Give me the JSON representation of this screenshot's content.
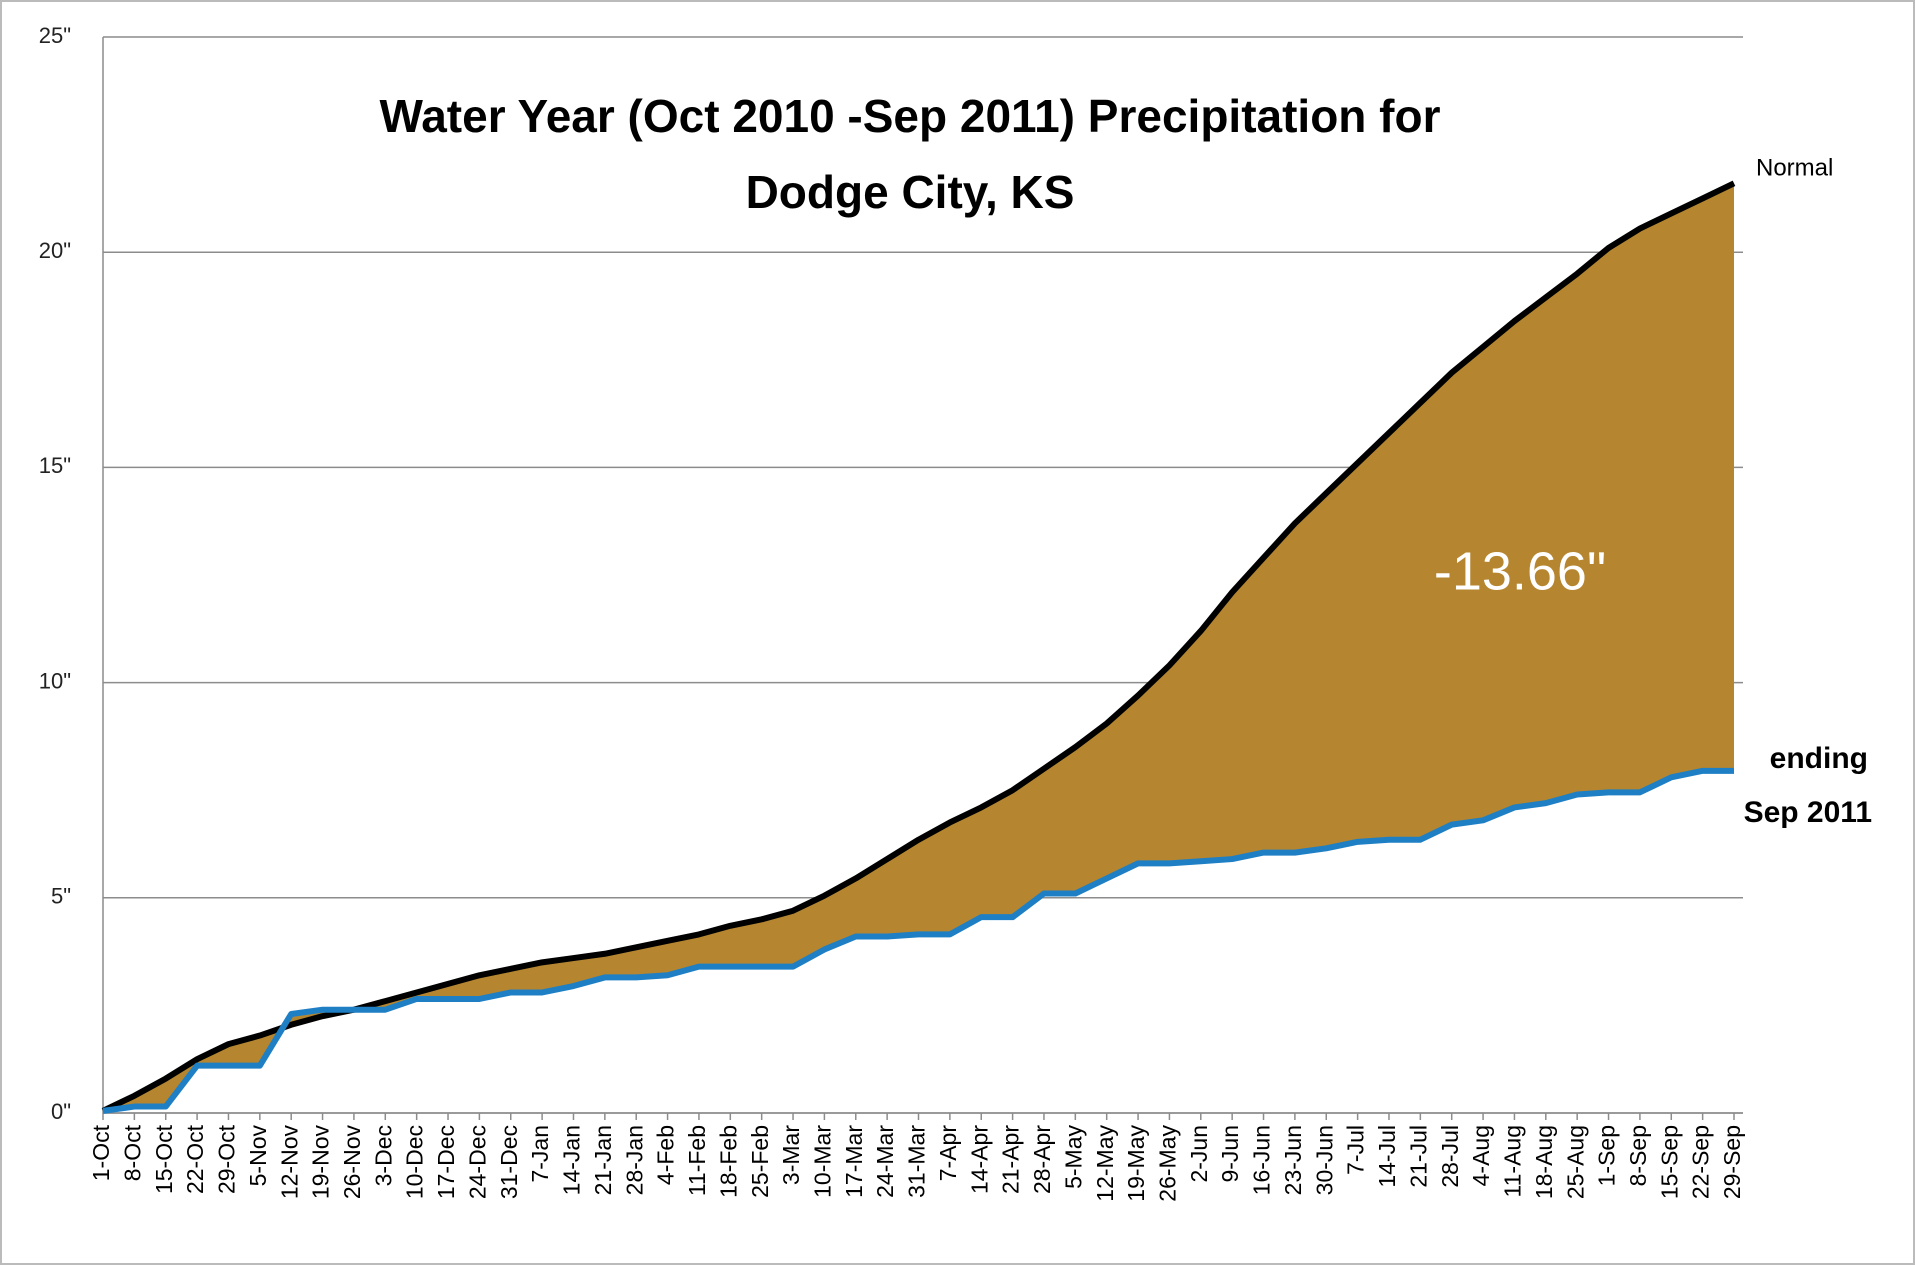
{
  "chart_data": {
    "type": "line",
    "title": "Water Year (Oct 2010 -Sep 2011) Precipitation for\nDodge City, KS",
    "categories": [
      "1-Oct",
      "8-Oct",
      "15-Oct",
      "22-Oct",
      "29-Oct",
      "5-Nov",
      "12-Nov",
      "19-Nov",
      "26-Nov",
      "3-Dec",
      "10-Dec",
      "17-Dec",
      "24-Dec",
      "31-Dec",
      "7-Jan",
      "14-Jan",
      "21-Jan",
      "28-Jan",
      "4-Feb",
      "11-Feb",
      "18-Feb",
      "25-Feb",
      "3-Mar",
      "10-Mar",
      "17-Mar",
      "24-Mar",
      "31-Mar",
      "7-Apr",
      "14-Apr",
      "21-Apr",
      "28-Apr",
      "5-May",
      "12-May",
      "19-May",
      "26-May",
      "2-Jun",
      "9-Jun",
      "16-Jun",
      "23-Jun",
      "30-Jun",
      "7-Jul",
      "14-Jul",
      "21-Jul",
      "28-Jul",
      "4-Aug",
      "11-Aug",
      "18-Aug",
      "25-Aug",
      "1-Sep",
      "8-Sep",
      "15-Sep",
      "22-Sep",
      "29-Sep"
    ],
    "series": [
      {
        "name": "Normal",
        "color": "#000000",
        "values": [
          0.05,
          0.4,
          0.8,
          1.25,
          1.6,
          1.8,
          2.05,
          2.25,
          2.4,
          2.6,
          2.8,
          3.0,
          3.2,
          3.35,
          3.5,
          3.6,
          3.7,
          3.85,
          4.0,
          4.15,
          4.35,
          4.5,
          4.7,
          5.05,
          5.45,
          5.9,
          6.35,
          6.75,
          7.1,
          7.5,
          8.0,
          8.5,
          9.05,
          9.7,
          10.4,
          11.2,
          12.1,
          12.9,
          13.7,
          14.4,
          15.1,
          15.8,
          16.5,
          17.2,
          17.8,
          18.4,
          18.95,
          19.5,
          20.1,
          20.55,
          20.9,
          21.25,
          21.6
        ]
      },
      {
        "color": "#1f7fc4",
        "values": [
          0.05,
          0.15,
          0.15,
          1.1,
          1.1,
          1.1,
          2.3,
          2.4,
          2.4,
          2.4,
          2.65,
          2.65,
          2.65,
          2.8,
          2.8,
          2.95,
          3.15,
          3.15,
          3.2,
          3.4,
          3.4,
          3.4,
          3.4,
          3.8,
          4.1,
          4.1,
          4.15,
          4.15,
          4.55,
          4.55,
          5.1,
          5.1,
          5.45,
          5.8,
          5.8,
          5.85,
          5.9,
          6.05,
          6.05,
          6.15,
          6.3,
          6.35,
          6.35,
          6.7,
          6.8,
          7.1,
          7.2,
          7.4,
          7.45,
          7.45,
          7.8,
          7.95,
          7.95
        ]
      }
    ],
    "fill_color": "#b5862f",
    "annotations": [
      "-13.66\"",
      "ending",
      "Sep 2011"
    ],
    "ylim": [
      0,
      25
    ],
    "yticks": [
      {
        "value": 0,
        "label": "0\""
      },
      {
        "value": 5,
        "label": "5\""
      },
      {
        "value": 10,
        "label": "10\""
      },
      {
        "value": 15,
        "label": "15\""
      },
      {
        "value": 20,
        "label": "20\""
      },
      {
        "value": 25,
        "label": "25\""
      }
    ],
    "grid": true
  }
}
